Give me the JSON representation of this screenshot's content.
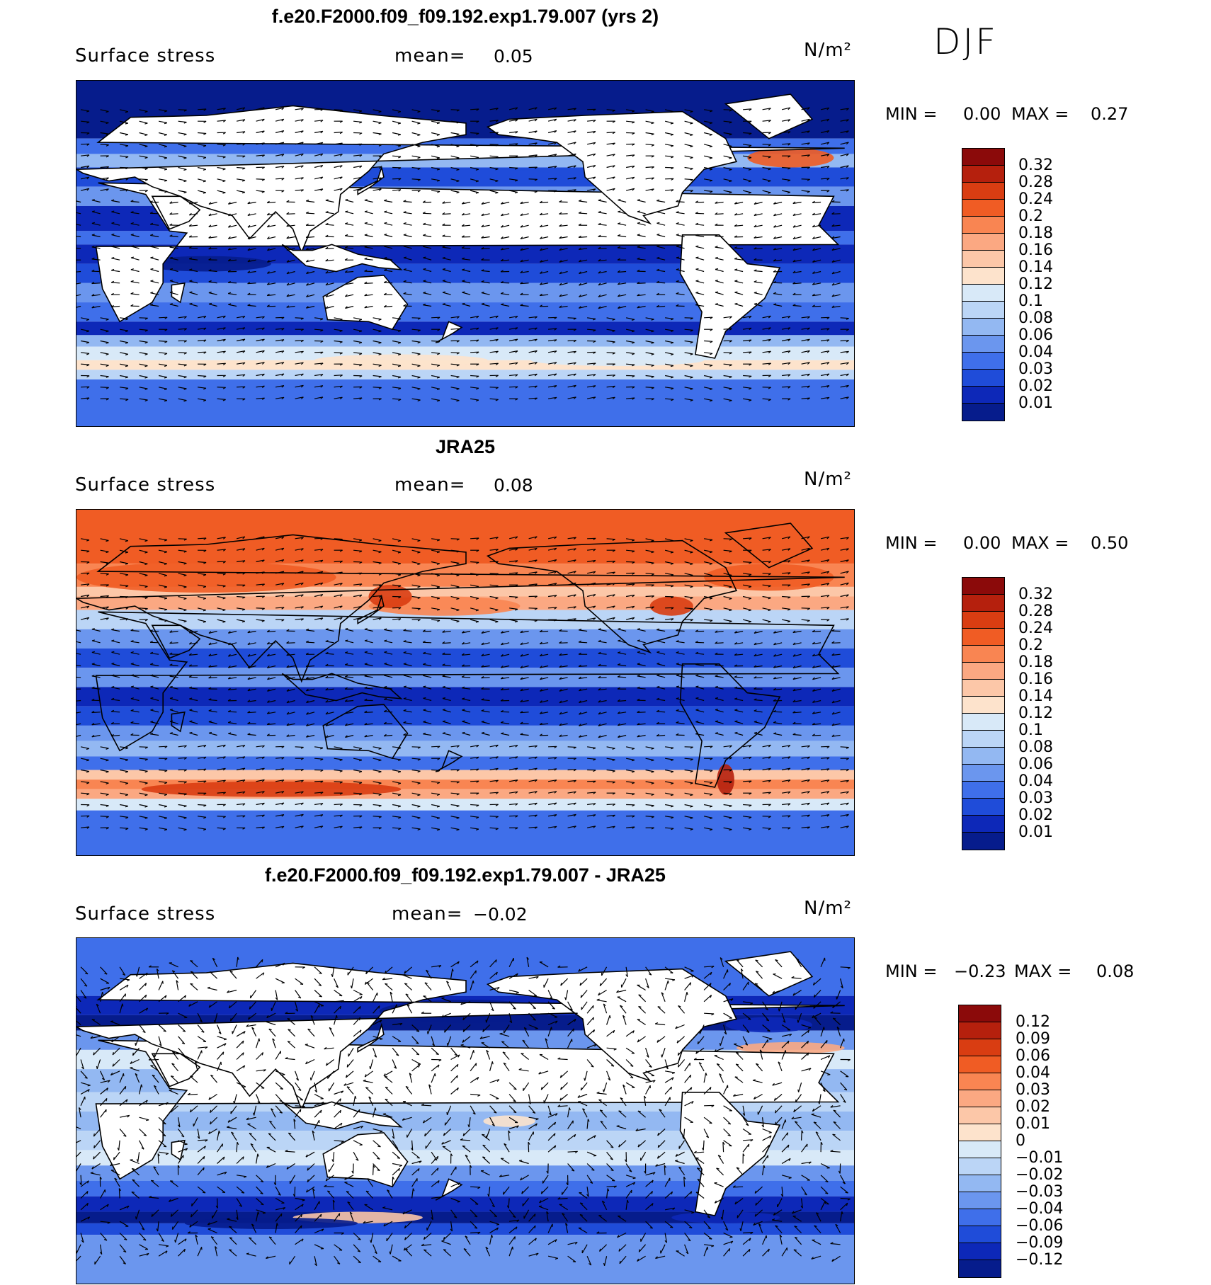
{
  "header": {
    "season": "DJF"
  },
  "panels": [
    {
      "title": "f.e20.F2000.f09_f09.192.exp1.79.007 (yrs 2)",
      "variable": "Surface stress",
      "mean_label": "mean=",
      "mean_value": "0.05",
      "units": "N/m²",
      "min_label": "MIN =",
      "min_value": "0.00",
      "max_label": "MAX =",
      "max_value": "0.27",
      "colorbar": {
        "labels": [
          "0.32",
          "0.28",
          "0.24",
          "0.2",
          "0.18",
          "0.16",
          "0.14",
          "0.12",
          "0.1",
          "0.08",
          "0.06",
          "0.04",
          "0.03",
          "0.02",
          "0.01"
        ],
        "colors": [
          "#8b0a0a",
          "#b5200d",
          "#d93d12",
          "#f05c24",
          "#f98552",
          "#fba882",
          "#fcc7a8",
          "#fde3cc",
          "#d8e9f8",
          "#bbd5f6",
          "#93b8f2",
          "#6b96ee",
          "#3f6fea",
          "#1f4cd9",
          "#0d28b8",
          "#061c8c"
        ]
      },
      "pattern": "model"
    },
    {
      "title": "JRA25",
      "variable": "Surface stress",
      "mean_label": "mean=",
      "mean_value": "0.08",
      "units": "N/m²",
      "min_label": "MIN =",
      "min_value": "0.00",
      "max_label": "MAX =",
      "max_value": "0.50",
      "colorbar": {
        "labels": [
          "0.32",
          "0.28",
          "0.24",
          "0.2",
          "0.18",
          "0.16",
          "0.14",
          "0.12",
          "0.1",
          "0.08",
          "0.06",
          "0.04",
          "0.03",
          "0.02",
          "0.01"
        ],
        "colors": [
          "#8b0a0a",
          "#b5200d",
          "#d93d12",
          "#f05c24",
          "#f98552",
          "#fba882",
          "#fcc7a8",
          "#fde3cc",
          "#d8e9f8",
          "#bbd5f6",
          "#93b8f2",
          "#6b96ee",
          "#3f6fea",
          "#1f4cd9",
          "#0d28b8",
          "#061c8c"
        ]
      },
      "pattern": "obs"
    },
    {
      "title": "f.e20.F2000.f09_f09.192.exp1.79.007 - JRA25",
      "variable": "Surface stress",
      "mean_label": "mean=",
      "mean_value": "−0.02",
      "units": "N/m²",
      "min_label": "MIN =",
      "min_value": "−0.23",
      "max_label": "MAX =",
      "max_value": "0.08",
      "colorbar": {
        "labels": [
          "0.12",
          "0.09",
          "0.06",
          "0.04",
          "0.03",
          "0.02",
          "0.01",
          "0",
          "−0.01",
          "−0.02",
          "−0.03",
          "−0.04",
          "−0.06",
          "−0.09",
          "−0.12"
        ],
        "colors": [
          "#8b0a0a",
          "#b5200d",
          "#d93d12",
          "#f05c24",
          "#f98552",
          "#fba882",
          "#fcc7a8",
          "#fde3cc",
          "#d8e9f8",
          "#bbd5f6",
          "#93b8f2",
          "#6b96ee",
          "#3f6fea",
          "#1f4cd9",
          "#0d28b8",
          "#061c8c"
        ]
      },
      "pattern": "diff"
    }
  ]
}
